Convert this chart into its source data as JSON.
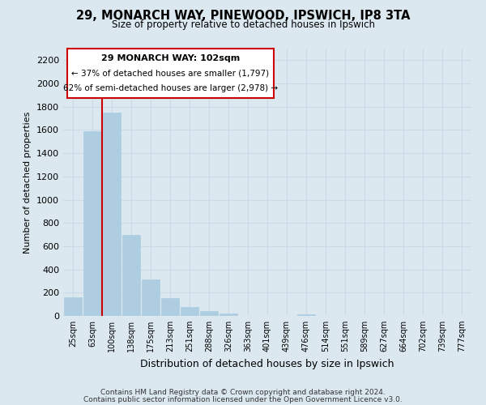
{
  "title": "29, MONARCH WAY, PINEWOOD, IPSWICH, IP8 3TA",
  "subtitle": "Size of property relative to detached houses in Ipswich",
  "xlabel": "Distribution of detached houses by size in Ipswich",
  "ylabel": "Number of detached properties",
  "footer1": "Contains HM Land Registry data © Crown copyright and database right 2024.",
  "footer2": "Contains public sector information licensed under the Open Government Licence v3.0.",
  "bar_labels": [
    "25sqm",
    "63sqm",
    "100sqm",
    "138sqm",
    "175sqm",
    "213sqm",
    "251sqm",
    "288sqm",
    "326sqm",
    "363sqm",
    "401sqm",
    "439sqm",
    "476sqm",
    "514sqm",
    "551sqm",
    "589sqm",
    "627sqm",
    "664sqm",
    "702sqm",
    "739sqm",
    "777sqm"
  ],
  "bar_values": [
    160,
    1590,
    1750,
    700,
    315,
    155,
    80,
    45,
    20,
    0,
    0,
    0,
    15,
    0,
    0,
    0,
    0,
    0,
    0,
    0,
    0
  ],
  "bar_color": "#aecde1",
  "vline_color": "#cc0000",
  "vline_x": 1.5,
  "annotation_title": "29 MONARCH WAY: 102sqm",
  "annotation_line1": "← 37% of detached houses are smaller (1,797)",
  "annotation_line2": "62% of semi-detached houses are larger (2,978) →",
  "annotation_box_color": "#ffffff",
  "annotation_box_edge": "#cc0000",
  "ylim": [
    0,
    2300
  ],
  "yticks": [
    0,
    200,
    400,
    600,
    800,
    1000,
    1200,
    1400,
    1600,
    1800,
    2000,
    2200
  ],
  "grid_color": "#ccd9e8",
  "bg_color": "#dce8f0"
}
